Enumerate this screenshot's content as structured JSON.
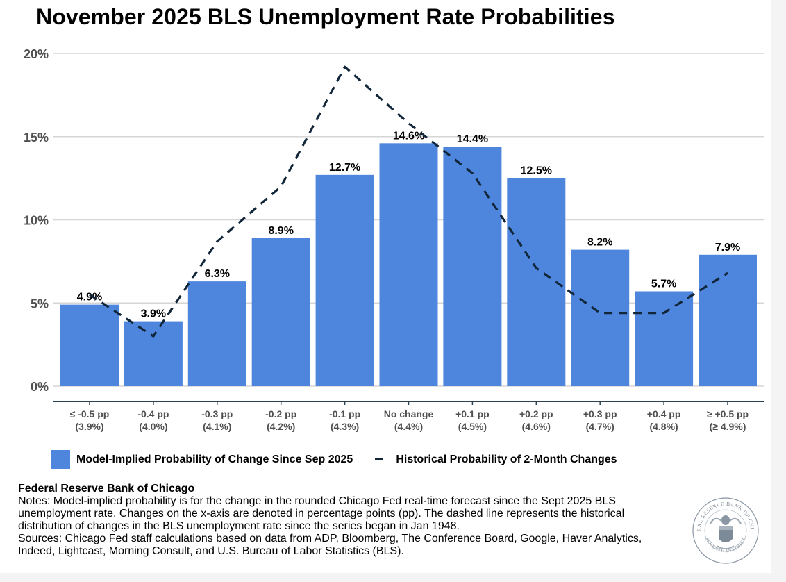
{
  "title": "November 2025 BLS Unemployment Rate Probabilities",
  "chart_data": {
    "type": "bar",
    "title": "November 2025 BLS Unemployment Rate Probabilities",
    "xlabel": "",
    "ylabel": "",
    "ylim": [
      0,
      20
    ],
    "yticks": [
      0,
      5,
      10,
      15,
      20
    ],
    "ytick_labels": [
      "0%",
      "5%",
      "10%",
      "15%",
      "20%"
    ],
    "grid": true,
    "legend_position": "bottom",
    "categories": [
      {
        "line1": "≤ -0.5 pp",
        "line2": "(3.9%)"
      },
      {
        "line1": "-0.4 pp",
        "line2": "(4.0%)"
      },
      {
        "line1": "-0.3 pp",
        "line2": "(4.1%)"
      },
      {
        "line1": "-0.2 pp",
        "line2": "(4.2%)"
      },
      {
        "line1": "-0.1 pp",
        "line2": "(4.3%)"
      },
      {
        "line1": "No change",
        "line2": "(4.4%)"
      },
      {
        "line1": "+0.1 pp",
        "line2": "(4.5%)"
      },
      {
        "line1": "+0.2 pp",
        "line2": "(4.6%)"
      },
      {
        "line1": "+0.3 pp",
        "line2": "(4.7%)"
      },
      {
        "line1": "+0.4 pp",
        "line2": "(4.8%)"
      },
      {
        "line1": "≥ +0.5 pp",
        "line2": "(≥ 4.9%)"
      }
    ],
    "series": [
      {
        "name": "Model-Implied Probability of Change Since Sep 2025",
        "type": "bar",
        "color": "#4e86dd",
        "values": [
          4.9,
          3.9,
          6.3,
          8.9,
          12.7,
          14.6,
          14.4,
          12.5,
          8.2,
          5.7,
          7.9
        ],
        "labels": [
          "4.9%",
          "3.9%",
          "6.3%",
          "8.9%",
          "12.7%",
          "14.6%",
          "14.4%",
          "12.5%",
          "8.2%",
          "5.7%",
          "7.9%"
        ]
      },
      {
        "name": "Historical Probability of 2-Month Changes",
        "type": "line",
        "style": "dashed",
        "color": "#12263a",
        "values": [
          5.5,
          3.0,
          8.7,
          12.0,
          19.2,
          15.8,
          12.8,
          7.1,
          4.4,
          4.4,
          6.8
        ]
      }
    ]
  },
  "legend": {
    "bar_label": "Model-Implied Probability of Change Since Sep 2025",
    "line_label": "Historical Probability of 2-Month Changes"
  },
  "footer": {
    "org": "Federal Reserve Bank of Chicago",
    "notes": "Notes: Model-implied probability is for the change in the rounded Chicago Fed real-time forecast since the Sept 2025 BLS unemployment rate. Changes on the x-axis are denoted in percentage points (pp). The dashed line represents the historical distribution of changes in the BLS unemployment rate since the series began in Jan 1948.",
    "sources": "Sources: Chicago Fed staff calculations based on data from ADP, Bloomberg, The Conference Board, Google, Haver Analytics, Indeed, Lightcast, Morning Consult, and U.S. Bureau of Labor Statistics (BLS)."
  },
  "seal": {
    "top_text": "FEDERAL RESERVE BANK OF CHICAGO",
    "bottom_text": "SEVENTH DISTRICT"
  }
}
